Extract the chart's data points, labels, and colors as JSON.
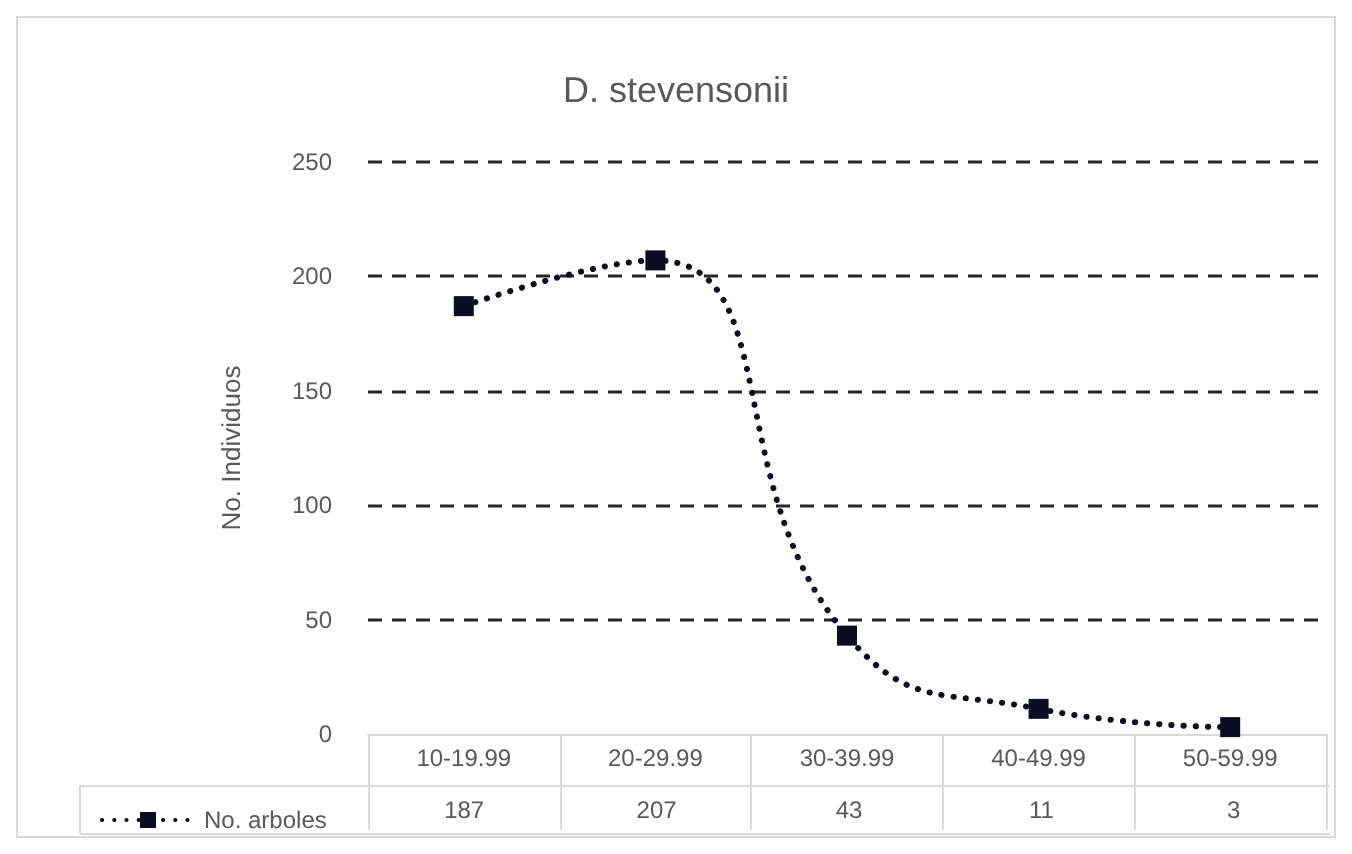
{
  "chart_data": {
    "type": "line",
    "title": "D. stevensonii",
    "ylabel": "No. Individuos",
    "categories": [
      "10-19.99",
      "20-29.99",
      "30-39.99",
      "40-49.99",
      "50-59.99"
    ],
    "series": [
      {
        "name": "No. arboles",
        "color": "#0c0c24",
        "values": [
          187,
          207,
          43,
          11,
          3
        ]
      }
    ],
    "ylim": [
      0,
      250
    ],
    "yticks": [
      0,
      50,
      100,
      150,
      200,
      250
    ],
    "grid": "y",
    "legend": "bottom left",
    "marker": "square",
    "line_style": "dotted",
    "data_labels": true
  }
}
